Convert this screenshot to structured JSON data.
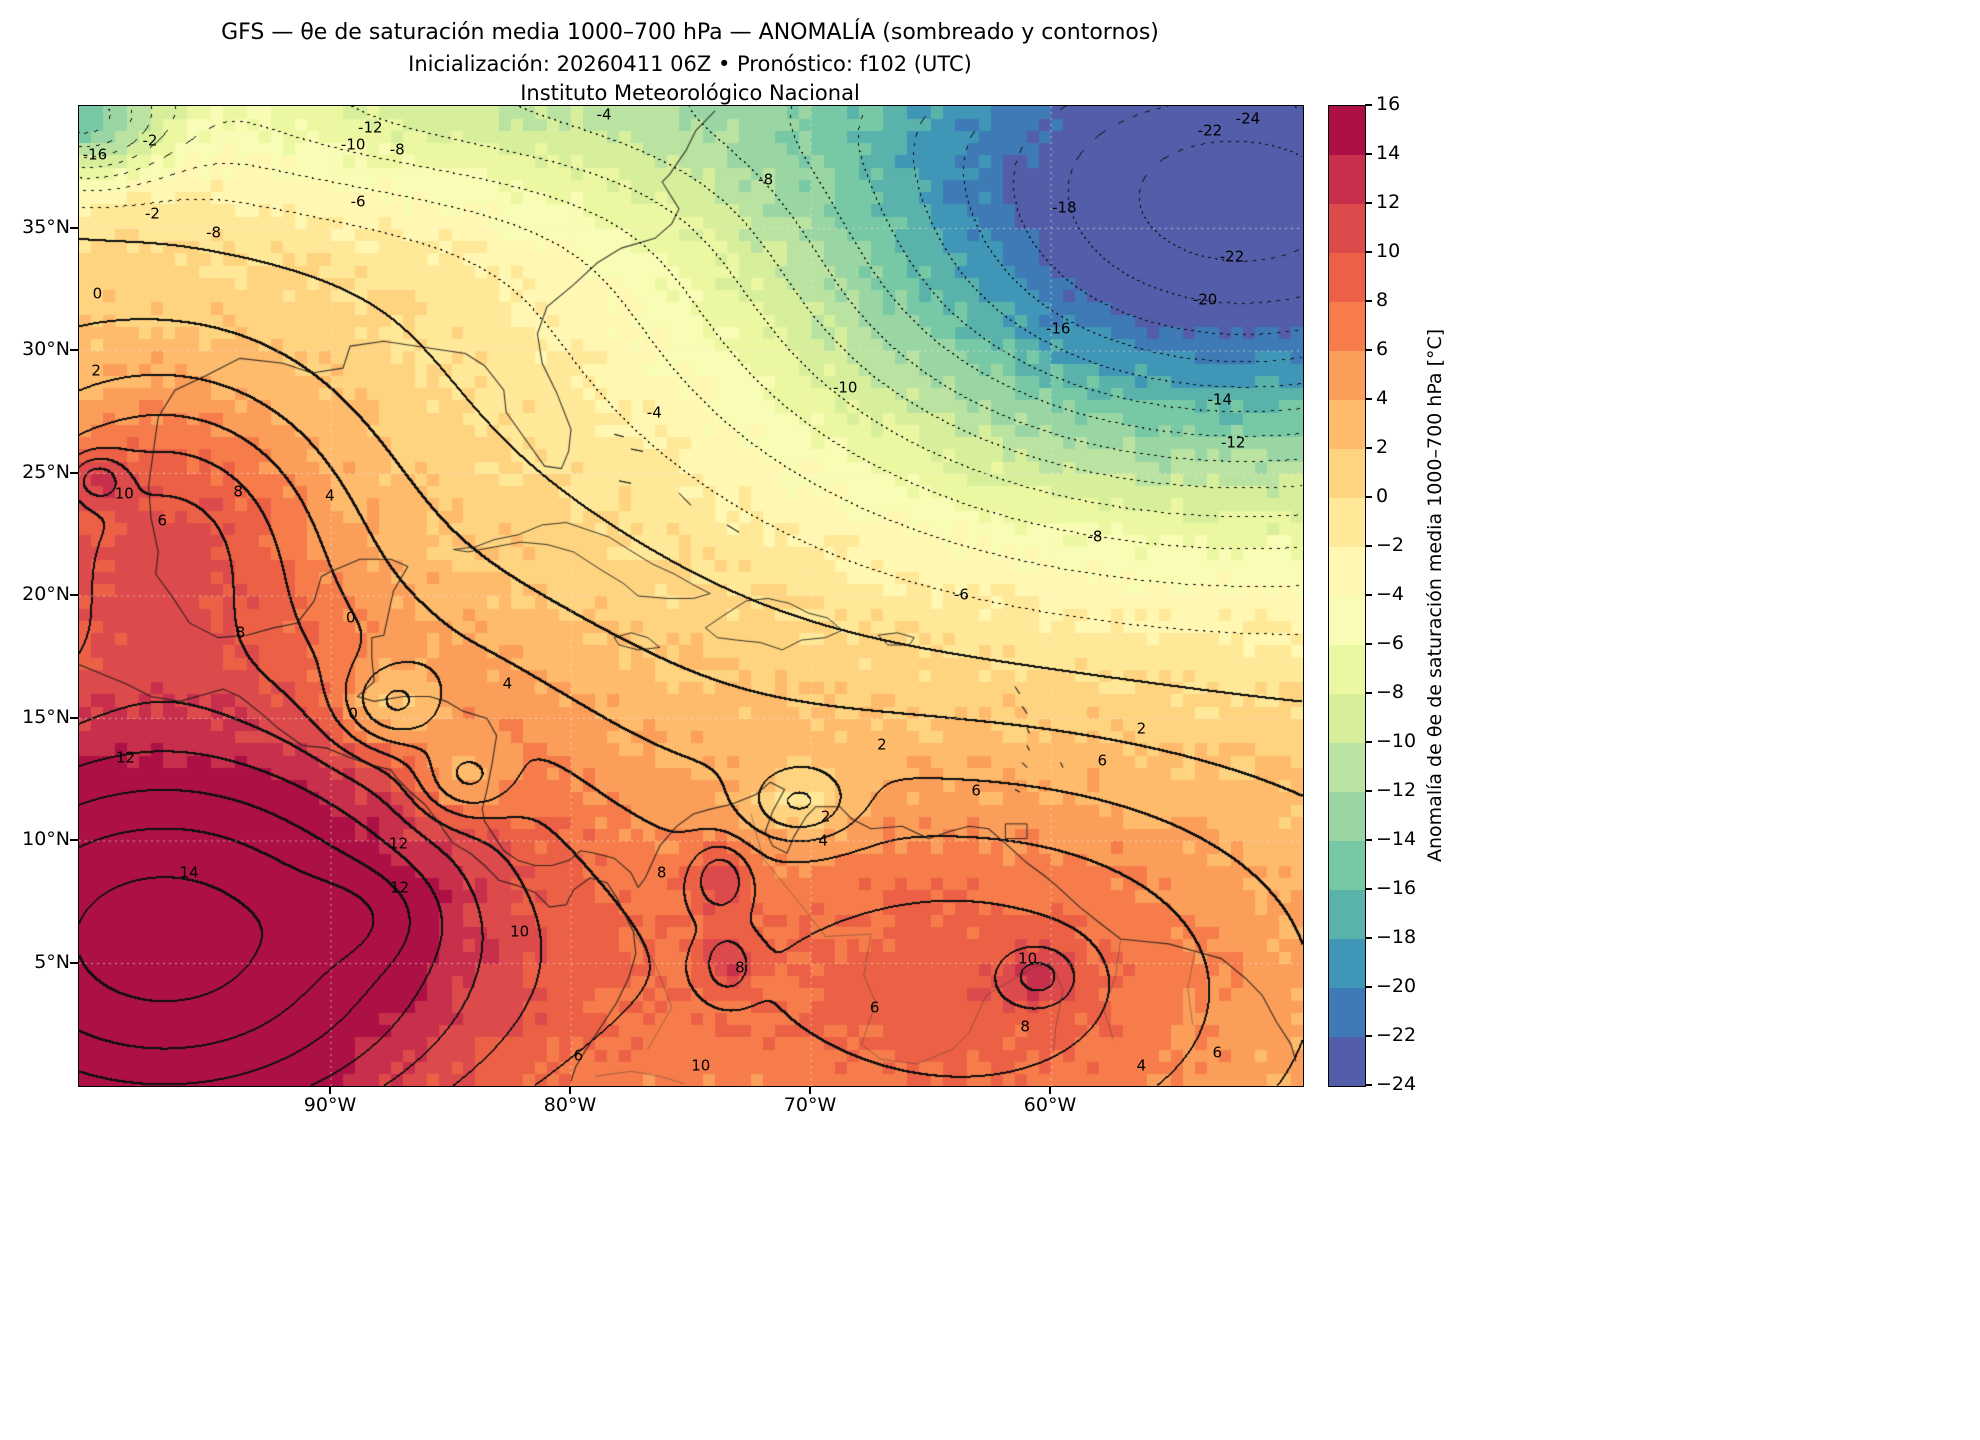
{
  "header": {
    "title": "GFS — θe de saturación media 1000–700 hPa — ANOMALÍA (sombreado y contornos)",
    "subtitle": "Inicialización: 20260411 06Z  •  Pronóstico: f102 (UTC)",
    "institution": "Instituto Meteorológico Nacional"
  },
  "chart_data": {
    "type": "heatmap",
    "variable": "Anomalía de θe de saturación media 1000–700 hPa",
    "units": "°C",
    "model": "GFS",
    "init": "20260411 06Z",
    "forecast": "f102 (UTC)",
    "shading": "sombreado y contornos",
    "contour_interval": 2,
    "levels_min": -24,
    "levels_max": 16,
    "grid": true,
    "x_axis": {
      "ticks": [
        "90°W",
        "80°W",
        "70°W",
        "60°W"
      ],
      "lon_range": [
        -100.5,
        -49.5
      ]
    },
    "y_axis": {
      "ticks": [
        "35°N",
        "30°N",
        "25°N",
        "20°N",
        "15°N",
        "10°N",
        "5°N"
      ],
      "lat_range": [
        0,
        40
      ]
    },
    "colorbar": {
      "label": "Anomalía de θe de saturación media 1000–700 hPa [°C]",
      "tick_values": [
        16,
        14,
        12,
        10,
        8,
        6,
        4,
        2,
        0,
        -2,
        -4,
        -6,
        -8,
        -10,
        -12,
        -14,
        -16,
        -18,
        -20,
        -22,
        -24
      ],
      "colors_low_to_high": [
        "#535da9",
        "#3d7ab6",
        "#3f96b7",
        "#59b3ab",
        "#77c9a5",
        "#9ad6a4",
        "#bae3a1",
        "#d7ef9b",
        "#ecf7a2",
        "#f9fcb5",
        "#fff7b2",
        "#ffe898",
        "#fed481",
        "#febb6c",
        "#fb9e5a",
        "#f67d4b",
        "#ec6146",
        "#dd4a4c",
        "#c72f4c",
        "#ac1045"
      ]
    },
    "field_model": {
      "baseline": 1,
      "gaussians": [
        {
          "amp": -28,
          "lon": -52,
          "lat": 36,
          "sx": 20,
          "sy": 12
        },
        {
          "amp": 20,
          "lon": -97,
          "lat": 6,
          "sx": 16,
          "sy": 11
        },
        {
          "amp": 8,
          "lon": -97,
          "lat": 23,
          "sx": 7,
          "sy": 6
        },
        {
          "amp": -12,
          "lon": -100.5,
          "lat": 39.5,
          "sx": 3.5,
          "sy": 2.5
        },
        {
          "amp": -9,
          "lon": -85,
          "lat": 41,
          "sx": 18,
          "sy": 5
        },
        {
          "amp": 8,
          "lon": -63,
          "lat": 4,
          "sx": 14,
          "sy": 9
        },
        {
          "amp": -6,
          "lon": -87.5,
          "lat": 15.5,
          "sx": 2.2,
          "sy": 1.8
        },
        {
          "amp": -5,
          "lon": -84.5,
          "lat": 12.5,
          "sx": 2.0,
          "sy": 1.6
        },
        {
          "amp": -5,
          "lon": -70.5,
          "lat": 11.5,
          "sx": 2.2,
          "sy": 1.5
        },
        {
          "amp": 5,
          "lon": -99.8,
          "lat": 24.8,
          "sx": 1.2,
          "sy": 1.0
        },
        {
          "amp": 5,
          "lon": -73.8,
          "lat": 8.5,
          "sx": 1.2,
          "sy": 1.4
        },
        {
          "amp": 4,
          "lon": -73.5,
          "lat": 5,
          "sx": 1.0,
          "sy": 1.2
        },
        {
          "amp": 4,
          "lon": -60.5,
          "lat": 4.5,
          "sx": 1.5,
          "sy": 1.2
        },
        {
          "amp": 2,
          "lon": -88.5,
          "lat": 7,
          "sx": 3,
          "sy": 2
        }
      ]
    },
    "contour_labels": [
      {
        "text": "-24",
        "x": 95.5,
        "y": 1.3
      },
      {
        "text": "-22",
        "x": 92.4,
        "y": 2.6
      },
      {
        "text": "-22",
        "x": 94.2,
        "y": 15.4
      },
      {
        "text": "-20",
        "x": 92.0,
        "y": 19.8
      },
      {
        "text": "-18",
        "x": 80.5,
        "y": 10.4
      },
      {
        "text": "-16",
        "x": 80.0,
        "y": 22.8
      },
      {
        "text": "-14",
        "x": 93.2,
        "y": 30.0
      },
      {
        "text": "-12",
        "x": 94.3,
        "y": 34.4
      },
      {
        "text": "-10",
        "x": 62.6,
        "y": 28.8
      },
      {
        "text": "-8",
        "x": 56.1,
        "y": 7.6
      },
      {
        "text": "-8",
        "x": 83.0,
        "y": 44.0
      },
      {
        "text": "-6",
        "x": 72.1,
        "y": 49.9
      },
      {
        "text": "-4",
        "x": 42.9,
        "y": 0.9
      },
      {
        "text": "-4",
        "x": 47.0,
        "y": 31.3
      },
      {
        "text": "-12",
        "x": 23.8,
        "y": 2.2
      },
      {
        "text": "-10",
        "x": 22.4,
        "y": 4.0
      },
      {
        "text": "-8",
        "x": 26.0,
        "y": 4.5
      },
      {
        "text": "-8",
        "x": 11.0,
        "y": 13.0
      },
      {
        "text": "-6",
        "x": 22.8,
        "y": 9.8
      },
      {
        "text": "-16",
        "x": 1.3,
        "y": 5.0
      },
      {
        "text": "-2",
        "x": 6.0,
        "y": 11.0
      },
      {
        "text": "-2",
        "x": 5.8,
        "y": 3.6
      },
      {
        "text": "0",
        "x": 1.5,
        "y": 19.2
      },
      {
        "text": "2",
        "x": 1.4,
        "y": 27.0
      },
      {
        "text": "4",
        "x": 20.5,
        "y": 39.8
      },
      {
        "text": "8",
        "x": 13.0,
        "y": 39.4
      },
      {
        "text": "6",
        "x": 6.8,
        "y": 42.3
      },
      {
        "text": "10",
        "x": 3.7,
        "y": 39.6
      },
      {
        "text": "8",
        "x": 13.2,
        "y": 53.8
      },
      {
        "text": "0",
        "x": 22.2,
        "y": 52.2
      },
      {
        "text": "0",
        "x": 22.4,
        "y": 62.0
      },
      {
        "text": "4",
        "x": 35.0,
        "y": 59.0
      },
      {
        "text": "2",
        "x": 65.6,
        "y": 65.2
      },
      {
        "text": "2",
        "x": 86.8,
        "y": 63.6
      },
      {
        "text": "2",
        "x": 61.0,
        "y": 72.5
      },
      {
        "text": "6",
        "x": 83.6,
        "y": 66.8
      },
      {
        "text": "6",
        "x": 73.3,
        "y": 69.9
      },
      {
        "text": "8",
        "x": 47.6,
        "y": 78.3
      },
      {
        "text": "12",
        "x": 3.8,
        "y": 66.5
      },
      {
        "text": "12",
        "x": 26.1,
        "y": 75.3
      },
      {
        "text": "14",
        "x": 9.0,
        "y": 78.3
      },
      {
        "text": "12",
        "x": 26.2,
        "y": 79.8
      },
      {
        "text": "10",
        "x": 36.0,
        "y": 84.3
      },
      {
        "text": "8",
        "x": 54.0,
        "y": 88.0
      },
      {
        "text": "6",
        "x": 65.0,
        "y": 92.0
      },
      {
        "text": "6",
        "x": 40.8,
        "y": 96.9
      },
      {
        "text": "10",
        "x": 50.8,
        "y": 98.0
      },
      {
        "text": "8",
        "x": 77.3,
        "y": 94.0
      },
      {
        "text": "6",
        "x": 93.0,
        "y": 96.6
      },
      {
        "text": "10",
        "x": 77.5,
        "y": 87.0
      },
      {
        "text": "4",
        "x": 60.8,
        "y": 75.0
      },
      {
        "text": "4",
        "x": 86.8,
        "y": 98.0
      }
    ]
  }
}
